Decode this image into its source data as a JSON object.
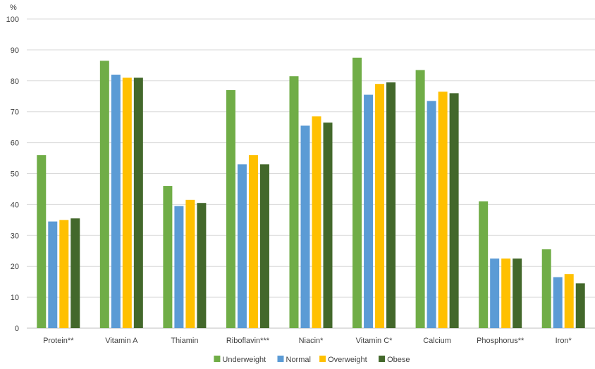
{
  "chart_data": {
    "type": "bar",
    "title": "",
    "xlabel": "",
    "ylabel": "%",
    "ylim": [
      0,
      100
    ],
    "yticks": [
      0,
      10,
      20,
      30,
      40,
      50,
      60,
      70,
      80,
      90,
      100
    ],
    "grid": true,
    "legend_position": "bottom",
    "categories": [
      "Protein**",
      "Vitamin A",
      "Thiamin",
      "Riboflavin***",
      "Niacin*",
      "Vitamin C*",
      "Calcium",
      "Phosphorus**",
      "Iron*"
    ],
    "series": [
      {
        "name": "Underweight",
        "color": "#70ad47",
        "values": [
          56,
          86.5,
          46,
          77,
          81.5,
          87.5,
          83.5,
          41,
          25.5
        ]
      },
      {
        "name": "Normal",
        "color": "#5b9bd5",
        "values": [
          34.5,
          82,
          39.5,
          53,
          65.5,
          75.5,
          73.5,
          22.5,
          16.5
        ]
      },
      {
        "name": "Overweight",
        "color": "#ffc000",
        "values": [
          35,
          81,
          41.5,
          56,
          68.5,
          79,
          76.5,
          22.5,
          17.5
        ]
      },
      {
        "name": "Obese",
        "color": "#43682b",
        "values": [
          35.5,
          81,
          40.5,
          53,
          66.5,
          79.5,
          76,
          22.5,
          14.5
        ]
      }
    ]
  }
}
